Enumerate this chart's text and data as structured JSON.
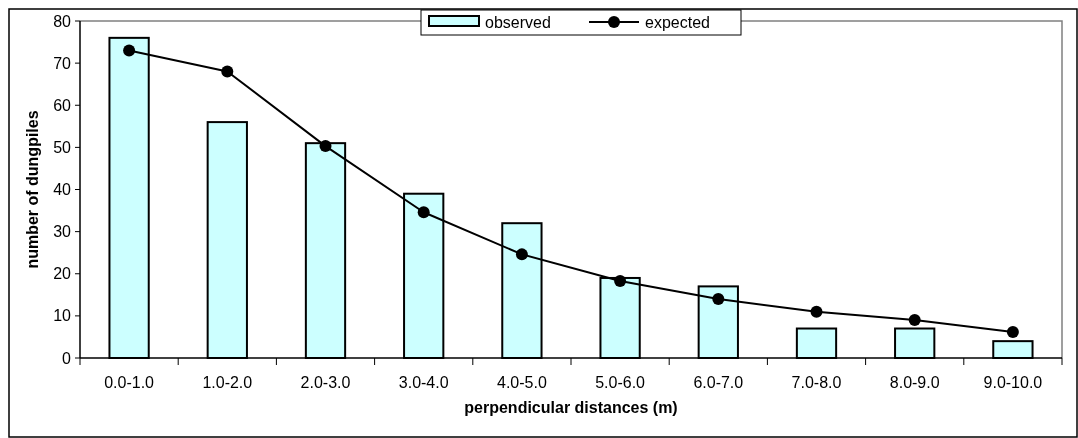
{
  "chart_data": {
    "type": "bar",
    "xlabel": "perpendicular distances (m)",
    "ylabel": "number of dungpiles",
    "categories": [
      "0.0-1.0",
      "1.0-2.0",
      "2.0-3.0",
      "3.0-4.0",
      "4.0-5.0",
      "5.0-6.0",
      "6.0-7.0",
      "7.0-8.0",
      "8.0-9.0",
      "9.0-10.0"
    ],
    "series": [
      {
        "name": "observed",
        "color": "#ccffff",
        "values": [
          76,
          56,
          51,
          39,
          32,
          19,
          17,
          7,
          7,
          4
        ]
      },
      {
        "name": "expected",
        "type": "line",
        "color": "#000000",
        "marker": "circle",
        "values": [
          73,
          68,
          50.3,
          34.6,
          24.6,
          18.3,
          14,
          11,
          9,
          6.2
        ]
      }
    ],
    "ylim": [
      0,
      80
    ],
    "yticks": [
      0,
      10,
      20,
      30,
      40,
      50,
      60,
      70,
      80
    ],
    "grid": false,
    "legend": "top"
  }
}
